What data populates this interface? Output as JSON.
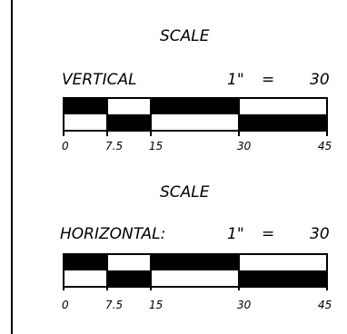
{
  "scales": [
    {
      "title": "SCALE",
      "orientation_label": "VERTICAL",
      "ratio": {
        "inch": "1\"",
        "equals": "=",
        "value": "30"
      },
      "tick_labels": [
        "0",
        "7.5",
        "15",
        "30",
        "45"
      ]
    },
    {
      "title": "SCALE",
      "orientation_label": "HORIZONTAL:",
      "ratio": {
        "inch": "1\"",
        "equals": "=",
        "value": "30"
      },
      "tick_labels": [
        "0",
        "7.5",
        "15",
        "30",
        "45"
      ]
    }
  ],
  "colors": {
    "ink": "#000000",
    "paper": "#ffffff"
  }
}
